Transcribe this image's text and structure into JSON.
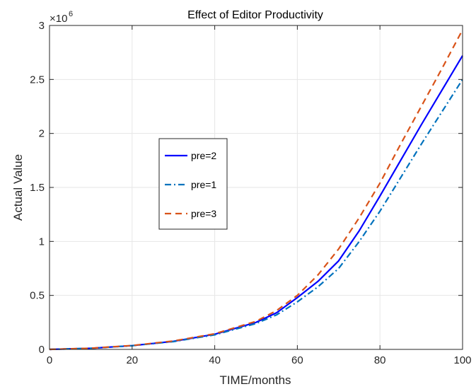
{
  "chart_data": {
    "type": "line",
    "title": "Effect of Editor Productivity",
    "xlabel": "TIME/months",
    "ylabel": "Actual Value",
    "xlim": [
      0,
      100
    ],
    "ylim": [
      0,
      3000000
    ],
    "x_ticks": [
      0,
      20,
      40,
      60,
      80,
      100
    ],
    "x_tick_labels": [
      "0",
      "20",
      "40",
      "60",
      "80",
      "100"
    ],
    "y_ticks": [
      0,
      500000,
      1000000,
      1500000,
      2000000,
      2500000,
      3000000
    ],
    "y_tick_labels": [
      "0",
      "0.5",
      "1",
      "1.5",
      "2",
      "2.5",
      "3"
    ],
    "y_multiplier": {
      "base": "×10",
      "exponent": "6"
    },
    "grid": true,
    "legend_position": "center-left",
    "x": [
      0,
      10,
      20,
      30,
      40,
      50,
      55,
      60,
      65,
      70,
      75,
      80,
      85,
      90,
      95,
      100
    ],
    "series": [
      {
        "name": "pre=2",
        "color": "#0000ff",
        "dash": "solid",
        "values": [
          0,
          10000,
          35000,
          75000,
          140000,
          250000,
          340000,
          480000,
          630000,
          820000,
          1100000,
          1420000,
          1750000,
          2080000,
          2400000,
          2720000
        ]
      },
      {
        "name": "pre=1",
        "color": "#0072bd",
        "dash": "dashdot",
        "values": [
          0,
          10000,
          34000,
          72000,
          135000,
          240000,
          320000,
          440000,
          580000,
          750000,
          1000000,
          1280000,
          1590000,
          1900000,
          2200000,
          2500000
        ]
      },
      {
        "name": "pre=3",
        "color": "#d95319",
        "dash": "dashed",
        "values": [
          0,
          11000,
          36000,
          78000,
          145000,
          260000,
          360000,
          500000,
          690000,
          930000,
          1220000,
          1540000,
          1900000,
          2250000,
          2600000,
          2960000
        ]
      }
    ]
  }
}
